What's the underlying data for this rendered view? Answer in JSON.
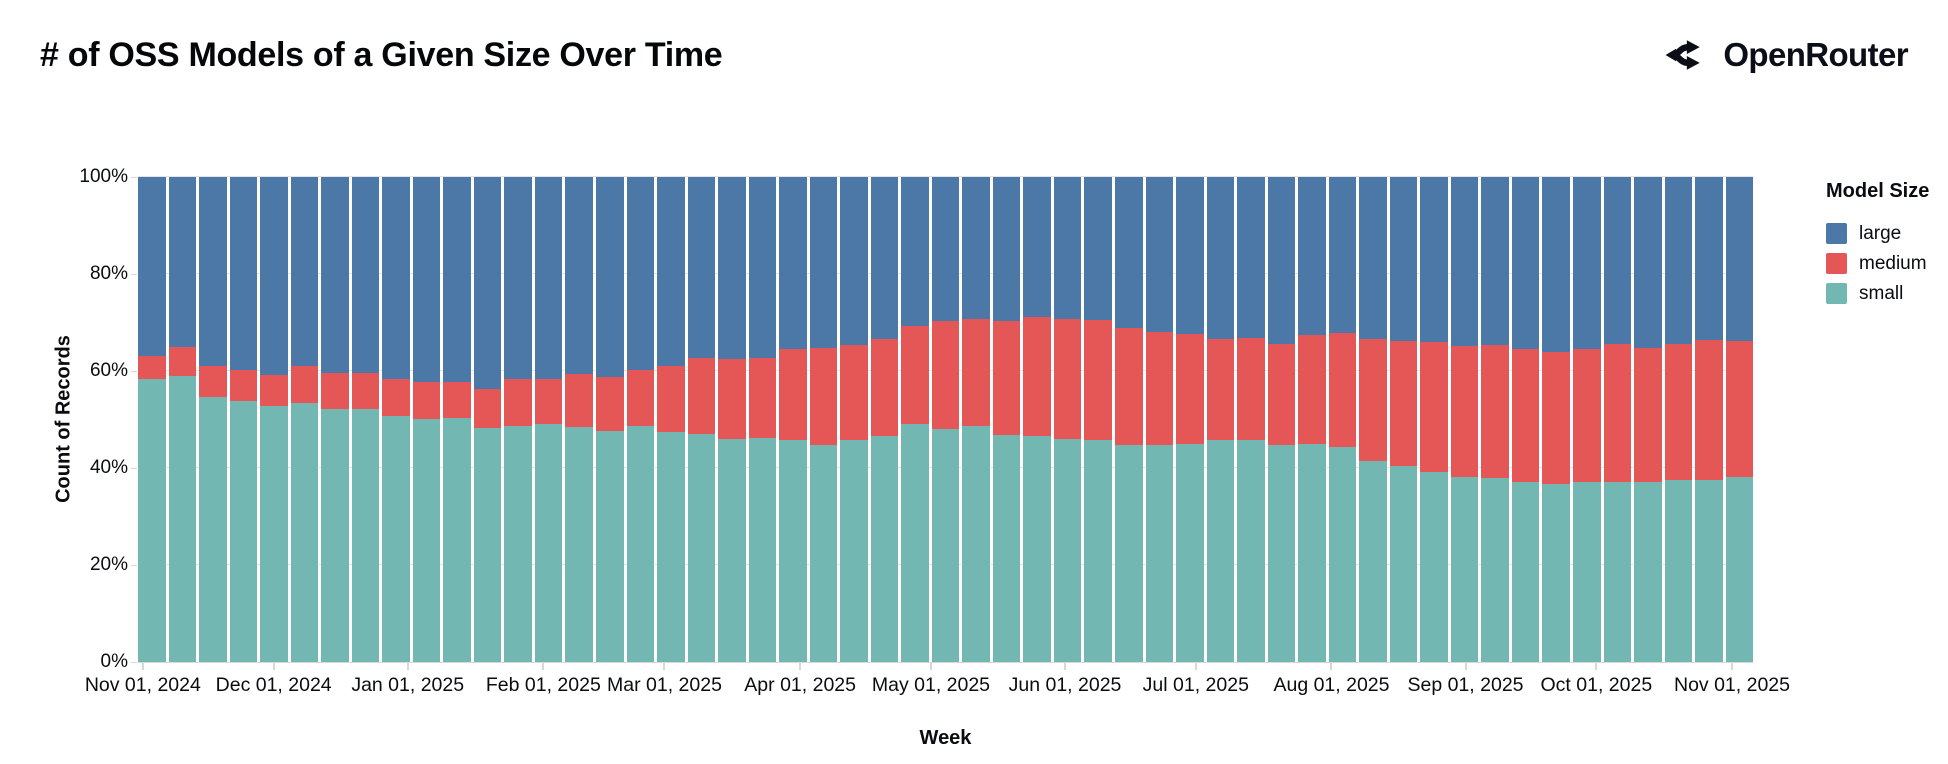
{
  "header": {
    "title": "# of OSS Models of a Given Size Over Time",
    "brand": "OpenRouter"
  },
  "colors": {
    "large": "#4c78a8",
    "medium": "#e45756",
    "small": "#72b7b2",
    "text": "#0b0c12",
    "grid": "#e4e4e8",
    "axis": "#d8d8dc"
  },
  "legend": {
    "title": "Model Size",
    "items": [
      {
        "label": "large",
        "key": "large"
      },
      {
        "label": "medium",
        "key": "medium"
      },
      {
        "label": "small",
        "key": "small"
      }
    ]
  },
  "chart_data": {
    "type": "bar",
    "variant": "stacked-100-percent",
    "title": "# of OSS Models of a Given Size Over Time",
    "xlabel": "Week",
    "ylabel": "Count of Records",
    "legend_title": "Model Size",
    "legend_position": "right",
    "grid": true,
    "units": "percent of records per weekly bin",
    "ylim": [
      0,
      100
    ],
    "y_ticks": [
      {
        "label": "100%",
        "value": 100
      },
      {
        "label": "80%",
        "value": 80
      },
      {
        "label": "60%",
        "value": 60
      },
      {
        "label": "40%",
        "value": 40
      },
      {
        "label": "20%",
        "value": 20
      },
      {
        "label": "0%",
        "value": 0
      }
    ],
    "x_ticks": [
      {
        "label": "Nov 01, 2024",
        "pct": 0.3
      },
      {
        "label": "Dec 01, 2024",
        "pct": 8.4
      },
      {
        "label": "Jan 01, 2025",
        "pct": 16.7
      },
      {
        "label": "Feb 01, 2025",
        "pct": 25.1
      },
      {
        "label": "Mar 01, 2025",
        "pct": 32.6
      },
      {
        "label": "Apr 01, 2025",
        "pct": 41.0
      },
      {
        "label": "May 01, 2025",
        "pct": 49.1
      },
      {
        "label": "Jun 01, 2025",
        "pct": 57.4
      },
      {
        "label": "Jul 01, 2025",
        "pct": 65.5
      },
      {
        "label": "Aug 01, 2025",
        "pct": 73.9
      },
      {
        "label": "Sep 01, 2025",
        "pct": 82.2
      },
      {
        "label": "Oct 01, 2025",
        "pct": 90.3
      },
      {
        "label": "Nov 01, 2025",
        "pct": 98.7
      }
    ],
    "series_keys": [
      "small",
      "medium",
      "large"
    ],
    "weeks": [
      {
        "week": "2024-10-27",
        "small": 58.3,
        "medium": 4.9,
        "large": 36.8
      },
      {
        "week": "2024-11-03",
        "small": 59.0,
        "medium": 5.9,
        "large": 35.1
      },
      {
        "week": "2024-11-10",
        "small": 54.7,
        "medium": 6.3,
        "large": 39.0
      },
      {
        "week": "2024-11-17",
        "small": 53.9,
        "medium": 6.4,
        "large": 39.7
      },
      {
        "week": "2024-11-24",
        "small": 52.8,
        "medium": 6.3,
        "large": 40.9
      },
      {
        "week": "2024-12-01",
        "small": 53.5,
        "medium": 7.5,
        "large": 39.0
      },
      {
        "week": "2024-12-08",
        "small": 52.2,
        "medium": 7.4,
        "large": 40.4
      },
      {
        "week": "2024-12-15",
        "small": 52.2,
        "medium": 7.3,
        "large": 40.5
      },
      {
        "week": "2024-12-22",
        "small": 50.8,
        "medium": 7.5,
        "large": 41.7
      },
      {
        "week": "2024-12-29",
        "small": 50.1,
        "medium": 7.6,
        "large": 42.3
      },
      {
        "week": "2025-01-05",
        "small": 50.3,
        "medium": 7.4,
        "large": 42.3
      },
      {
        "week": "2025-01-12",
        "small": 48.3,
        "medium": 7.9,
        "large": 43.8
      },
      {
        "week": "2025-01-19",
        "small": 48.6,
        "medium": 9.8,
        "large": 41.6
      },
      {
        "week": "2025-01-26",
        "small": 49.0,
        "medium": 9.3,
        "large": 41.7
      },
      {
        "week": "2025-02-02",
        "small": 48.4,
        "medium": 10.9,
        "large": 40.7
      },
      {
        "week": "2025-02-09",
        "small": 47.6,
        "medium": 11.2,
        "large": 41.2
      },
      {
        "week": "2025-02-16",
        "small": 48.6,
        "medium": 11.7,
        "large": 39.7
      },
      {
        "week": "2025-02-23",
        "small": 47.4,
        "medium": 13.6,
        "large": 39.0
      },
      {
        "week": "2025-03-02",
        "small": 47.0,
        "medium": 15.6,
        "large": 37.4
      },
      {
        "week": "2025-03-09",
        "small": 46.0,
        "medium": 16.4,
        "large": 37.6
      },
      {
        "week": "2025-03-16",
        "small": 46.1,
        "medium": 16.5,
        "large": 37.4
      },
      {
        "week": "2025-03-23",
        "small": 45.7,
        "medium": 18.9,
        "large": 35.4
      },
      {
        "week": "2025-03-30",
        "small": 44.7,
        "medium": 20.0,
        "large": 35.3
      },
      {
        "week": "2025-04-06",
        "small": 45.7,
        "medium": 19.6,
        "large": 34.7
      },
      {
        "week": "2025-04-13",
        "small": 46.7,
        "medium": 20.0,
        "large": 33.3
      },
      {
        "week": "2025-04-20",
        "small": 49.0,
        "medium": 20.3,
        "large": 30.7
      },
      {
        "week": "2025-04-27",
        "small": 48.1,
        "medium": 22.2,
        "large": 29.7
      },
      {
        "week": "2025-05-04",
        "small": 48.6,
        "medium": 22.2,
        "large": 29.2
      },
      {
        "week": "2025-05-11",
        "small": 46.9,
        "medium": 23.4,
        "large": 29.7
      },
      {
        "week": "2025-05-18",
        "small": 46.7,
        "medium": 24.5,
        "large": 28.8
      },
      {
        "week": "2025-05-25",
        "small": 46.0,
        "medium": 24.8,
        "large": 29.2
      },
      {
        "week": "2025-06-01",
        "small": 45.7,
        "medium": 24.8,
        "large": 29.5
      },
      {
        "week": "2025-06-08",
        "small": 44.7,
        "medium": 24.2,
        "large": 31.1
      },
      {
        "week": "2025-06-15",
        "small": 44.7,
        "medium": 23.4,
        "large": 31.9
      },
      {
        "week": "2025-06-22",
        "small": 45.0,
        "medium": 22.7,
        "large": 32.3
      },
      {
        "week": "2025-06-29",
        "small": 45.7,
        "medium": 21.0,
        "large": 33.3
      },
      {
        "week": "2025-07-06",
        "small": 45.7,
        "medium": 21.2,
        "large": 33.1
      },
      {
        "week": "2025-07-13",
        "small": 44.7,
        "medium": 20.9,
        "large": 34.4
      },
      {
        "week": "2025-07-20",
        "small": 45.0,
        "medium": 22.4,
        "large": 32.6
      },
      {
        "week": "2025-07-27",
        "small": 44.3,
        "medium": 23.6,
        "large": 32.1
      },
      {
        "week": "2025-08-03",
        "small": 41.4,
        "medium": 25.3,
        "large": 33.3
      },
      {
        "week": "2025-08-10",
        "small": 40.5,
        "medium": 25.7,
        "large": 33.8
      },
      {
        "week": "2025-08-17",
        "small": 39.2,
        "medium": 26.8,
        "large": 34.0
      },
      {
        "week": "2025-08-24",
        "small": 38.2,
        "medium": 26.9,
        "large": 34.9
      },
      {
        "week": "2025-08-31",
        "small": 38.0,
        "medium": 27.3,
        "large": 34.7
      },
      {
        "week": "2025-09-07",
        "small": 37.1,
        "medium": 27.4,
        "large": 35.5
      },
      {
        "week": "2025-09-14",
        "small": 36.7,
        "medium": 27.2,
        "large": 36.1
      },
      {
        "week": "2025-09-21",
        "small": 37.1,
        "medium": 27.4,
        "large": 35.5
      },
      {
        "week": "2025-09-28",
        "small": 37.1,
        "medium": 28.4,
        "large": 34.5
      },
      {
        "week": "2025-10-05",
        "small": 37.1,
        "medium": 27.7,
        "large": 35.2
      },
      {
        "week": "2025-10-12",
        "small": 37.6,
        "medium": 27.9,
        "large": 34.5
      },
      {
        "week": "2025-10-19",
        "small": 37.6,
        "medium": 28.7,
        "large": 33.7
      },
      {
        "week": "2025-10-26",
        "small": 38.2,
        "medium": 28.0,
        "large": 33.8
      }
    ]
  }
}
